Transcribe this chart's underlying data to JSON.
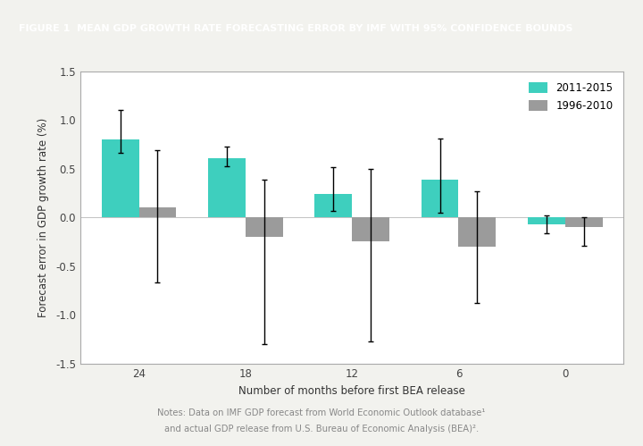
{
  "categories": [
    24,
    18,
    12,
    6,
    0
  ],
  "teal_values": [
    0.8,
    0.61,
    0.24,
    0.39,
    -0.07
  ],
  "teal_yerr_low": [
    0.14,
    0.08,
    0.17,
    0.34,
    0.09
  ],
  "teal_yerr_high": [
    0.3,
    0.12,
    0.28,
    0.42,
    0.09
  ],
  "gray_values": [
    0.1,
    -0.2,
    -0.25,
    -0.3,
    -0.1
  ],
  "gray_yerr_low": [
    0.77,
    1.1,
    1.02,
    0.58,
    0.19
  ],
  "gray_yerr_high": [
    0.59,
    0.59,
    0.75,
    0.57,
    0.1
  ],
  "teal_color": "#3ECFBE",
  "gray_color": "#9B9B9B",
  "bar_width": 0.35,
  "title_bold": "FIGURE 1",
  "title_rest": "  MEAN GDP GROWTH RATE FORECASTING ERROR BY IMF WITH 95% CONFIDENCE BOUNDS",
  "title_bg_color": "#22BCBE",
  "title_text_color": "#FFFFFF",
  "xlabel": "Number of months before first BEA release",
  "ylabel": "Forecast error in GDP growth rate (%)",
  "ylim": [
    -1.5,
    1.5
  ],
  "yticks": [
    -1.5,
    -1.0,
    -0.5,
    0.0,
    0.5,
    1.0,
    1.5
  ],
  "legend_labels": [
    "2011-2015",
    "1996-2010"
  ],
  "note_line1": "Notes: Data on IMF GDP forecast from World Economic Outlook database¹",
  "note_line2": "and actual GDP release from U.S. Bureau of Economic Analysis (BEA)².",
  "bg_color": "#F2F2EE",
  "plot_bg_color": "#FFFFFF",
  "spine_color": "#AAAAAA"
}
